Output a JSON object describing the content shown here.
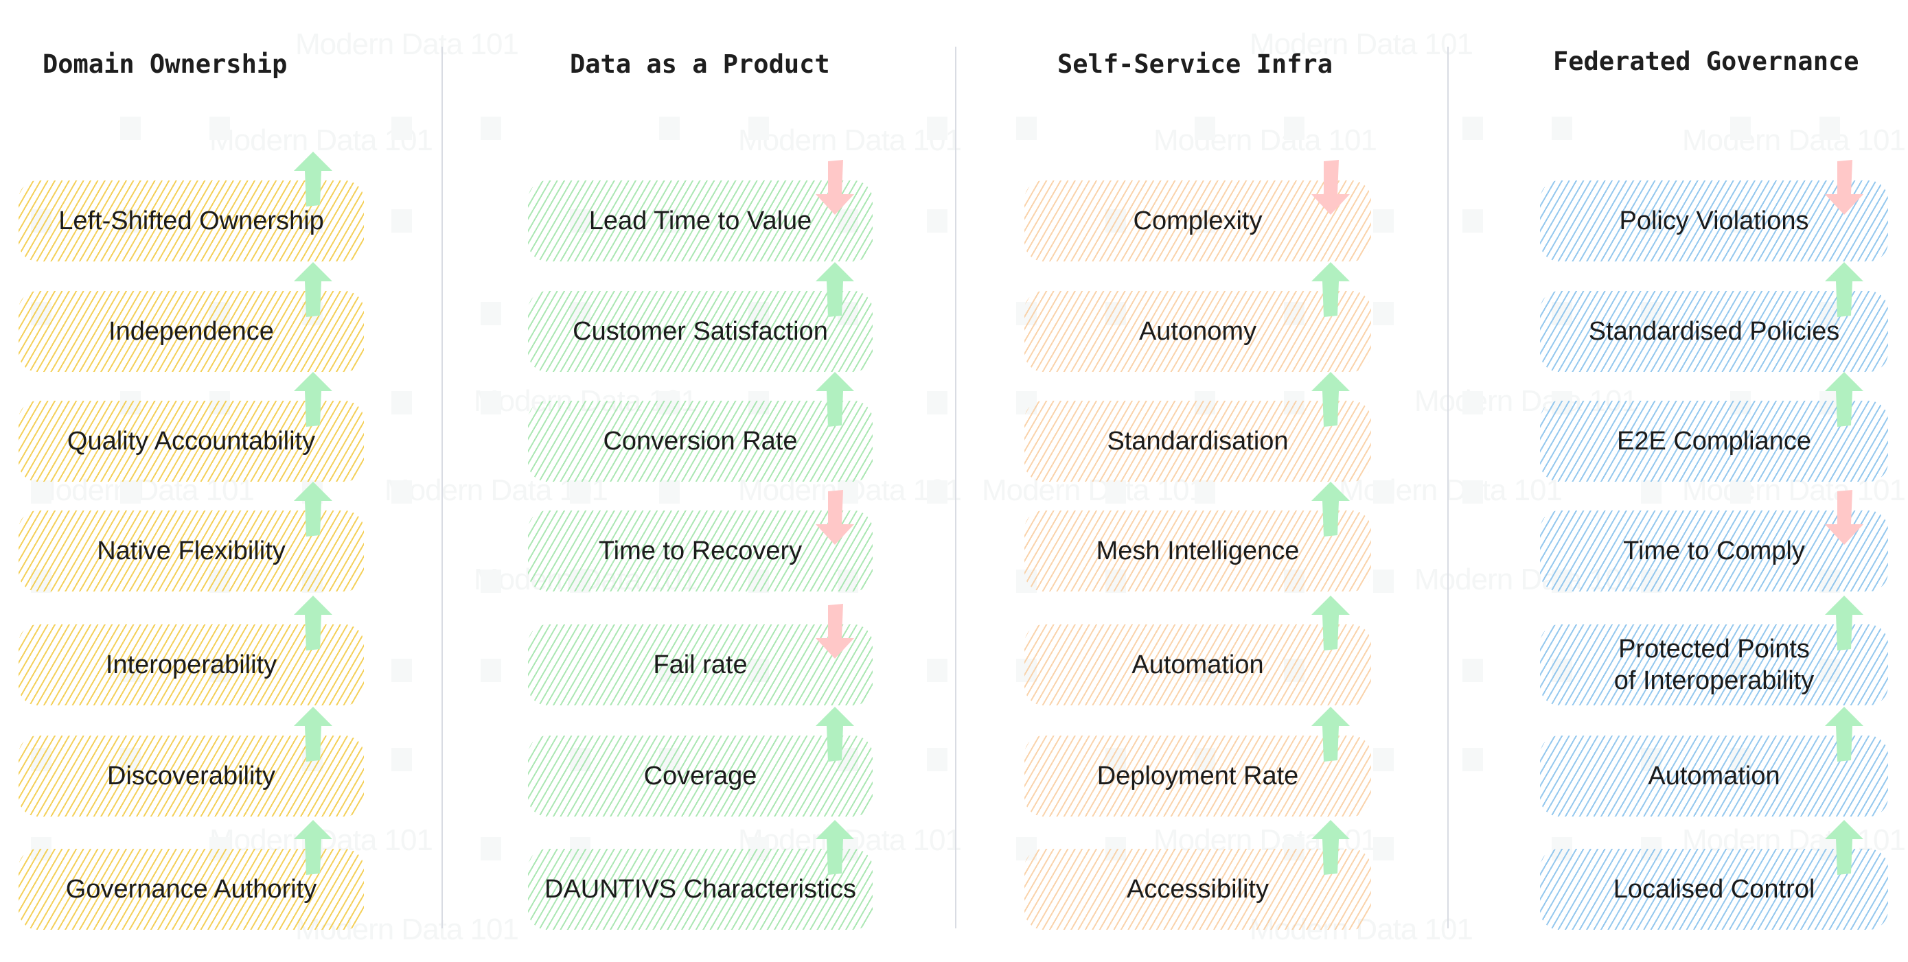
{
  "colors": {
    "arrow_up": "#b1f0c0",
    "arrow_down": "#ffc8c8",
    "domain_ownership": "#f2c83c",
    "data_as_a_product": "#96e1a0",
    "self_service_infra": "#f8c896",
    "federated_governance": "#82beeb",
    "divider": "#d9dce3",
    "text": "#1b1b1b"
  },
  "watermark": "Modern Data 101",
  "columns": [
    {
      "title": "Domain Ownership",
      "theme": "yellow",
      "items": [
        {
          "label": "Left-Shifted Ownership",
          "direction": "up"
        },
        {
          "label": "Independence",
          "direction": "up"
        },
        {
          "label": "Quality Accountability",
          "direction": "up"
        },
        {
          "label": "Native Flexibility",
          "direction": "up"
        },
        {
          "label": "Interoperability",
          "direction": "up"
        },
        {
          "label": "Discoverability",
          "direction": "up"
        },
        {
          "label": "Governance Authority",
          "direction": "up"
        }
      ]
    },
    {
      "title": "Data as a Product",
      "theme": "green",
      "items": [
        {
          "label": "Lead Time to Value",
          "direction": "down"
        },
        {
          "label": "Customer Satisfaction",
          "direction": "up"
        },
        {
          "label": "Conversion Rate",
          "direction": "up"
        },
        {
          "label": "Time to Recovery",
          "direction": "down"
        },
        {
          "label": "Fail rate",
          "direction": "down"
        },
        {
          "label": "Coverage",
          "direction": "up"
        },
        {
          "label": "DAUNTIVS Characteristics",
          "direction": "up"
        }
      ]
    },
    {
      "title": "Self-Service Infra",
      "theme": "orange",
      "items": [
        {
          "label": "Complexity",
          "direction": "down"
        },
        {
          "label": "Autonomy",
          "direction": "up"
        },
        {
          "label": "Standardisation",
          "direction": "up"
        },
        {
          "label": "Mesh Intelligence",
          "direction": "up"
        },
        {
          "label": "Automation",
          "direction": "up"
        },
        {
          "label": "Deployment Rate",
          "direction": "up"
        },
        {
          "label": "Accessibility",
          "direction": "up"
        }
      ]
    },
    {
      "title": "Federated Governance",
      "theme": "blue",
      "items": [
        {
          "label": "Policy Violations",
          "direction": "down"
        },
        {
          "label": "Standardised Policies",
          "direction": "up"
        },
        {
          "label": "E2E Compliance",
          "direction": "up"
        },
        {
          "label": "Time to Comply",
          "direction": "down"
        },
        {
          "label": "Protected Points of Interoperability",
          "direction": "up"
        },
        {
          "label": "Automation",
          "direction": "up"
        },
        {
          "label": "Localised Control",
          "direction": "up"
        }
      ]
    }
  ]
}
